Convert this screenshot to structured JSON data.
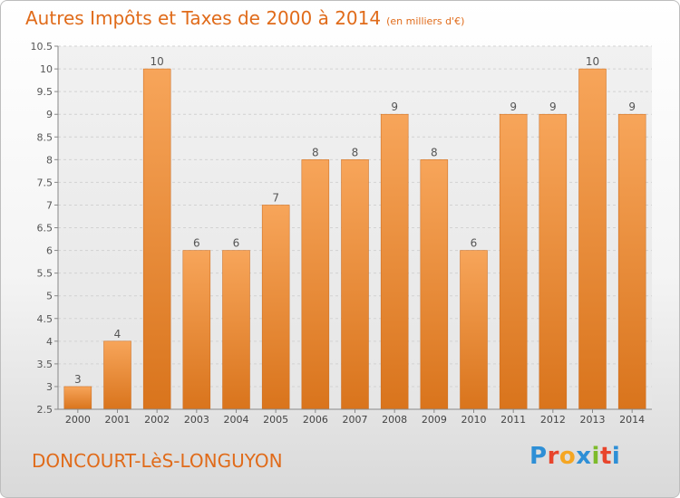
{
  "header": {
    "title": "Autres Impôts et Taxes de 2000 à 2014",
    "unit": "(en milliers d'€)"
  },
  "footer": {
    "commune": "DONCOURT-LèS-LONGUYON",
    "brand": "Proxiti",
    "brand_colors": [
      "#2e8fd6",
      "#e8452c",
      "#f5a623",
      "#2e8fd6",
      "#7dbb2b",
      "#e8452c",
      "#2e8fd6"
    ]
  },
  "colors": {
    "accent": "#e06b1a",
    "bar_top": "#f7a55a",
    "bar_bottom": "#d9741c"
  },
  "chart_data": {
    "type": "bar",
    "title": "Autres Impôts et Taxes de 2000 à 2014",
    "subtitle": "(en milliers d'€)",
    "categories": [
      "2000",
      "2001",
      "2002",
      "2003",
      "2004",
      "2005",
      "2006",
      "2007",
      "2008",
      "2009",
      "2010",
      "2011",
      "2012",
      "2013",
      "2014"
    ],
    "values": [
      3,
      4,
      10,
      6,
      6,
      7,
      8,
      8,
      9,
      8,
      6,
      9,
      9,
      10,
      9
    ],
    "data_labels": [
      "3",
      "4",
      "10",
      "6",
      "6",
      "7",
      "8",
      "8",
      "9",
      "8",
      "6",
      "9",
      "9",
      "10",
      "9"
    ],
    "ylim": [
      2.5,
      10.5
    ],
    "yticks": [
      "2.5",
      "3",
      "3.5",
      "4",
      "4.5",
      "5",
      "5.5",
      "6",
      "6.5",
      "7",
      "7.5",
      "8",
      "8.5",
      "9",
      "9.5",
      "10",
      "10.5"
    ],
    "grid": true
  }
}
